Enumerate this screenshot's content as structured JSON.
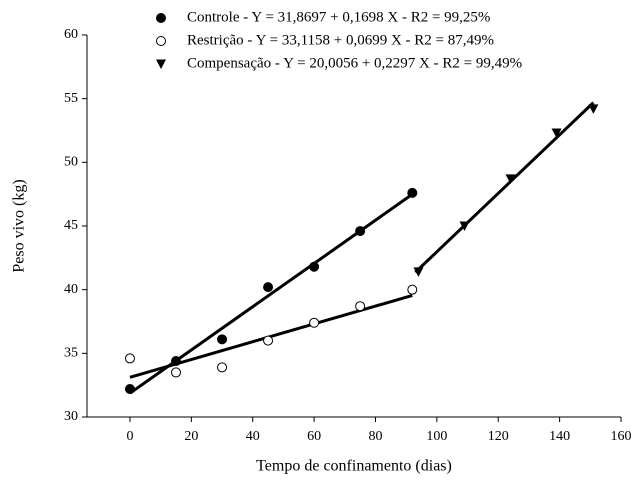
{
  "chart_data": {
    "type": "scatter",
    "x_label": "Tempo de confinamento (dias)",
    "y_label": "Peso vivo (kg)",
    "xlim": [
      -14,
      160
    ],
    "ylim": [
      30,
      60
    ],
    "xticks": [
      0,
      20,
      40,
      60,
      80,
      100,
      120,
      140,
      160
    ],
    "yticks": [
      30,
      35,
      40,
      45,
      50,
      55,
      60
    ],
    "series": [
      {
        "name": "Controle - Y = 31,8697 + 0,1698 X - R2 = 99,25%",
        "marker": "filled-circle",
        "color": "#000000",
        "x": [
          0,
          15,
          30,
          45,
          60,
          75,
          92
        ],
        "values": [
          32.2,
          34.4,
          36.1,
          40.2,
          41.8,
          44.6,
          47.6
        ],
        "trend": {
          "intercept": 31.8697,
          "slope": 0.1698,
          "x": [
            0,
            92
          ]
        }
      },
      {
        "name": "Restrição - Y = 33,1158 + 0,0699 X - R2 = 87,49%",
        "marker": "open-circle",
        "color": "#000000",
        "x": [
          0,
          15,
          30,
          45,
          60,
          75,
          92
        ],
        "values": [
          34.6,
          33.5,
          33.9,
          36.0,
          37.4,
          38.7,
          40.0
        ],
        "trend": {
          "intercept": 33.1158,
          "slope": 0.0699,
          "x": [
            0,
            92
          ]
        }
      },
      {
        "name": "Compensação - Y = 20,0056 + 0,2297 X - R2 = 99,49%",
        "marker": "triangle-down",
        "color": "#000000",
        "x": [
          94,
          109,
          124,
          139,
          151
        ],
        "values": [
          41.4,
          45.0,
          48.7,
          52.3,
          54.2
        ],
        "trend": {
          "intercept": 20.0056,
          "slope": 0.2297,
          "x": [
            93,
            151
          ]
        }
      }
    ]
  }
}
